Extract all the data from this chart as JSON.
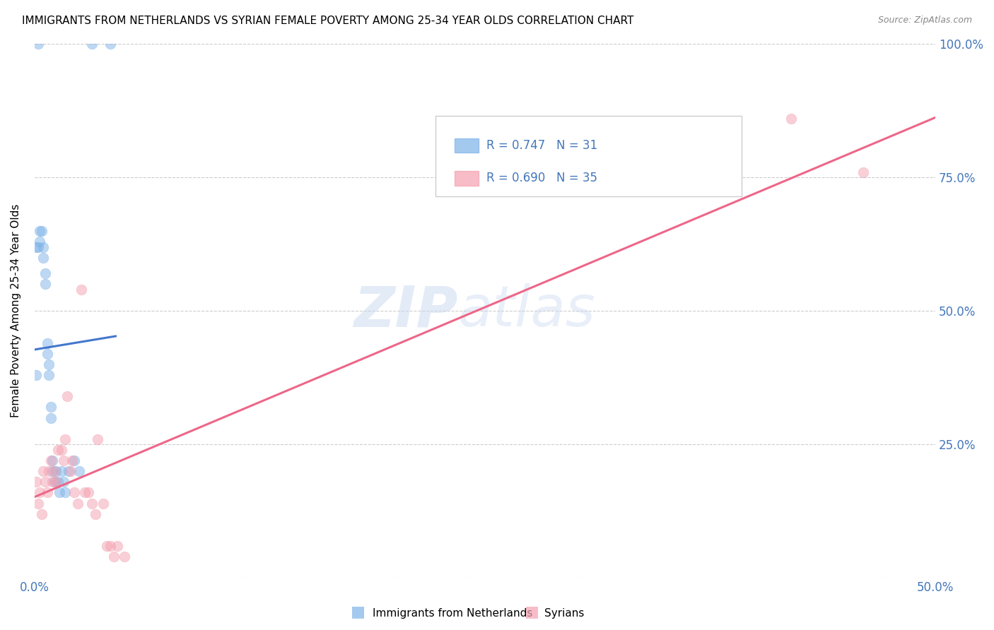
{
  "title": "IMMIGRANTS FROM NETHERLANDS VS SYRIAN FEMALE POVERTY AMONG 25-34 YEAR OLDS CORRELATION CHART",
  "source": "Source: ZipAtlas.com",
  "ylabel": "Female Poverty Among 25-34 Year Olds",
  "watermark_zip": "ZIP",
  "watermark_atlas": "atlas",
  "legend_blue_R": "R = 0.747",
  "legend_blue_N": "N = 31",
  "legend_pink_R": "R = 0.690",
  "legend_pink_N": "N = 35",
  "legend_label_blue": "Immigrants from Netherlands",
  "legend_label_pink": "Syrians",
  "blue_color": "#7EB3E8",
  "pink_color": "#F4A0B0",
  "blue_line_color": "#4477CC",
  "pink_line_color": "#EE6688",
  "text_color_blue": "#4477BB",
  "background_color": "#FFFFFF",
  "grid_color": "#CCCCCC",
  "blue_x": [
    0.0008,
    0.002,
    0.002,
    0.003,
    0.003,
    0.004,
    0.005,
    0.005,
    0.006,
    0.006,
    0.007,
    0.007,
    0.008,
    0.008,
    0.009,
    0.009,
    0.01,
    0.01,
    0.011,
    0.012,
    0.013,
    0.014,
    0.015,
    0.016,
    0.017,
    0.019,
    0.022,
    0.025,
    0.032,
    0.042,
    0.001
  ],
  "blue_y": [
    0.62,
    1.0,
    0.62,
    0.65,
    0.63,
    0.65,
    0.6,
    0.62,
    0.55,
    0.57,
    0.42,
    0.44,
    0.38,
    0.4,
    0.32,
    0.3,
    0.22,
    0.2,
    0.18,
    0.2,
    0.18,
    0.16,
    0.2,
    0.18,
    0.16,
    0.2,
    0.22,
    0.2,
    1.0,
    1.0,
    0.38
  ],
  "pink_x": [
    0.001,
    0.002,
    0.003,
    0.004,
    0.005,
    0.006,
    0.007,
    0.008,
    0.009,
    0.01,
    0.011,
    0.012,
    0.013,
    0.015,
    0.016,
    0.017,
    0.018,
    0.02,
    0.021,
    0.022,
    0.024,
    0.026,
    0.028,
    0.03,
    0.032,
    0.034,
    0.035,
    0.038,
    0.04,
    0.042,
    0.044,
    0.046,
    0.05,
    0.42,
    0.46
  ],
  "pink_y": [
    0.18,
    0.14,
    0.16,
    0.12,
    0.2,
    0.18,
    0.16,
    0.2,
    0.22,
    0.18,
    0.2,
    0.18,
    0.24,
    0.24,
    0.22,
    0.26,
    0.34,
    0.2,
    0.22,
    0.16,
    0.14,
    0.54,
    0.16,
    0.16,
    0.14,
    0.12,
    0.26,
    0.14,
    0.06,
    0.06,
    0.04,
    0.06,
    0.04,
    0.86,
    0.76
  ],
  "xlim": [
    0.0,
    0.5
  ],
  "ylim": [
    0.0,
    1.0
  ],
  "xtick_positions": [
    0.0,
    0.1,
    0.2,
    0.3,
    0.4,
    0.5
  ],
  "ytick_positions": [
    0.0,
    0.25,
    0.5,
    0.75,
    1.0
  ]
}
